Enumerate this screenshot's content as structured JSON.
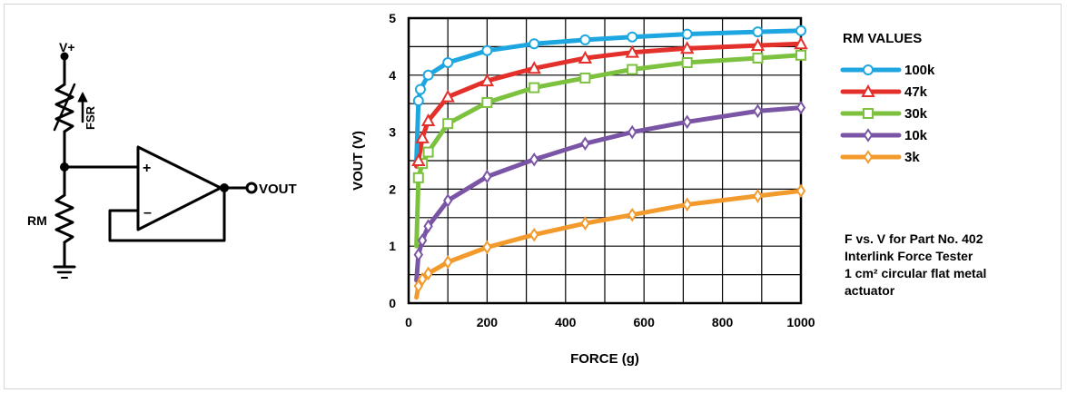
{
  "schematic": {
    "vplus_label": "V+",
    "fsr_label": "FSR",
    "rm_label": "RM",
    "plus_sign": "+",
    "minus_sign": "–",
    "vout_label": "VOUT"
  },
  "chart_data": {
    "type": "line",
    "xlabel": "FORCE (g)",
    "ylabel": "VOUT (V)",
    "xlim": [
      0,
      1000
    ],
    "ylim": [
      0,
      5
    ],
    "xticks": [
      0,
      200,
      400,
      600,
      800,
      1000
    ],
    "xtick_labels": [
      "0",
      "200",
      "400",
      "600",
      "800",
      "1000"
    ],
    "yticks": [
      0,
      1,
      2,
      3,
      4,
      5
    ],
    "ytick_labels": [
      "0",
      "1",
      "2",
      "3",
      "4",
      "5"
    ],
    "grid": true,
    "legend_position": "right",
    "legend_title": "RM VALUES",
    "series": [
      {
        "name": "100k",
        "color": "#1ea6e0",
        "marker": "circle",
        "x": [
          20,
          25,
          30,
          50,
          100,
          200,
          320,
          450,
          570,
          710,
          890,
          1000
        ],
        "y": [
          2.5,
          3.55,
          3.75,
          4.0,
          4.22,
          4.43,
          4.55,
          4.62,
          4.67,
          4.72,
          4.76,
          4.78
        ]
      },
      {
        "name": "47k",
        "color": "#e4302b",
        "marker": "triangle",
        "x": [
          20,
          25,
          35,
          50,
          100,
          200,
          320,
          450,
          570,
          710,
          890,
          1000
        ],
        "y": [
          2.4,
          2.5,
          2.9,
          3.2,
          3.62,
          3.9,
          4.12,
          4.3,
          4.4,
          4.47,
          4.52,
          4.55
        ]
      },
      {
        "name": "30k",
        "color": "#7dc23f",
        "marker": "square",
        "x": [
          20,
          25,
          35,
          50,
          100,
          200,
          320,
          450,
          570,
          710,
          890,
          1000
        ],
        "y": [
          1.0,
          2.2,
          2.45,
          2.65,
          3.15,
          3.52,
          3.78,
          3.95,
          4.1,
          4.22,
          4.3,
          4.35
        ]
      },
      {
        "name": "10k",
        "color": "#7a55a5",
        "marker": "diamond",
        "x": [
          20,
          25,
          35,
          50,
          100,
          200,
          320,
          450,
          570,
          710,
          890,
          1000
        ],
        "y": [
          0.4,
          0.85,
          1.1,
          1.35,
          1.8,
          2.22,
          2.52,
          2.8,
          3.0,
          3.18,
          3.37,
          3.43
        ]
      },
      {
        "name": "3k",
        "color": "#f39a2c",
        "marker": "diamond",
        "x": [
          20,
          25,
          35,
          50,
          100,
          200,
          320,
          450,
          570,
          710,
          890,
          1000
        ],
        "y": [
          0.1,
          0.3,
          0.42,
          0.52,
          0.72,
          0.98,
          1.2,
          1.4,
          1.55,
          1.73,
          1.88,
          1.97
        ]
      }
    ],
    "annotation": [
      "F vs. V for Part No. 402",
      "Interlink Force Tester",
      "1 cm² circular flat metal",
      "actuator"
    ]
  }
}
